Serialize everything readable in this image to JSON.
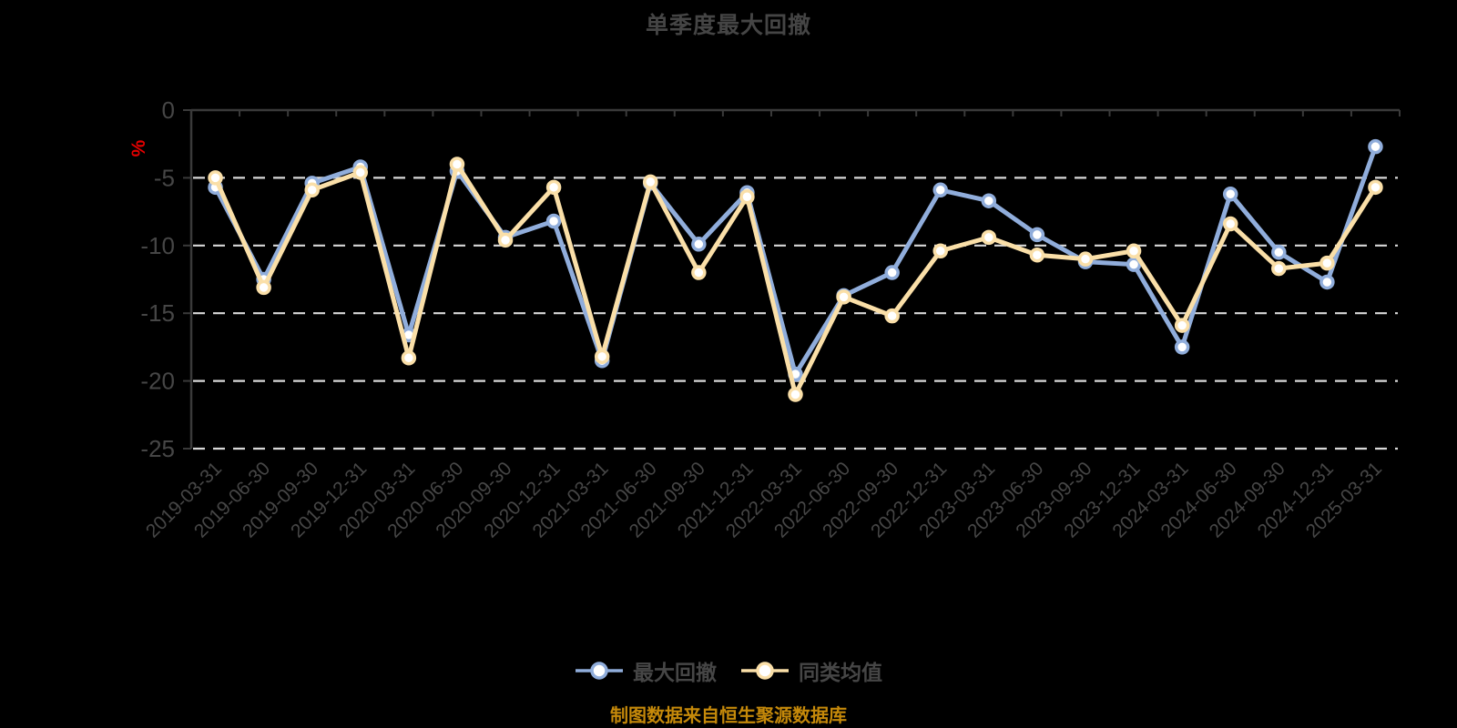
{
  "chart_data": {
    "type": "line",
    "title": "单季度最大回撤",
    "ylabel": "%",
    "source_note": "制图数据来自恒生聚源数据库",
    "categories": [
      "2019-03-31",
      "2019-06-30",
      "2019-09-30",
      "2019-12-31",
      "2020-03-31",
      "2020-06-30",
      "2020-09-30",
      "2020-12-31",
      "2021-03-31",
      "2021-06-30",
      "2021-09-30",
      "2021-12-31",
      "2022-03-31",
      "2022-06-30",
      "2022-09-30",
      "2022-12-31",
      "2023-03-31",
      "2023-06-30",
      "2023-09-30",
      "2023-12-31",
      "2024-03-31",
      "2024-06-30",
      "2024-09-30",
      "2024-12-31",
      "2025-03-31"
    ],
    "series": [
      {
        "name": "最大回撤",
        "color": "#90addb",
        "values": [
          -5.7,
          -12.5,
          -5.4,
          -4.2,
          -16.6,
          -4.5,
          -9.4,
          -8.2,
          -18.5,
          -5.4,
          -9.9,
          -6.1,
          -19.5,
          -13.7,
          -12.0,
          -5.9,
          -6.7,
          -9.2,
          -11.2,
          -11.4,
          -17.5,
          -6.2,
          -10.5,
          -12.7,
          -2.7
        ]
      },
      {
        "name": "同类均值",
        "color": "#fadfa8",
        "values": [
          -5.0,
          -13.1,
          -5.9,
          -4.6,
          -18.3,
          -4.0,
          -9.6,
          -5.7,
          -18.2,
          -5.3,
          -12.0,
          -6.4,
          -21.0,
          -13.8,
          -15.2,
          -10.4,
          -9.4,
          -10.7,
          -11.0,
          -10.4,
          -15.9,
          -8.4,
          -11.7,
          -11.3,
          -5.7
        ]
      }
    ],
    "ylim": [
      -25,
      0
    ],
    "yticks": [
      0,
      -5,
      -10,
      -15,
      -20,
      -25
    ],
    "grid": "horizontal-dashed",
    "legend_position": "bottom",
    "colors": {
      "background": "#000000",
      "axis": "#3a3a3a",
      "gridline": "#d9d9d9",
      "text": "#464646",
      "ylabel": "#e60000",
      "source_note": "#c5890a",
      "marker_fill": "#ffffff"
    }
  }
}
